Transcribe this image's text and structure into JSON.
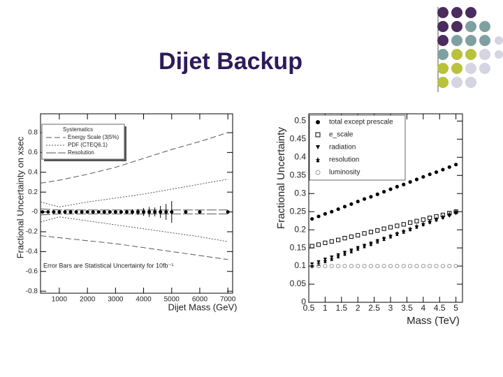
{
  "title": "Dijet Backup",
  "chart_data": [
    {
      "type": "line",
      "ylabel": "Fractional Uncertainty on xsec",
      "xlabel": "Dijet Mass (GeV)",
      "legend_title": "Systematics",
      "annotation": "Error Bars are Statistical Uncertainty for 10fb⁻¹",
      "xlim": [
        330,
        7170
      ],
      "ylim": [
        -0.82,
        0.99
      ],
      "xticks": [
        1000,
        2000,
        3000,
        4000,
        5000,
        6000,
        7000
      ],
      "yticks": [
        -0.8,
        -0.6,
        -0.4,
        -0.2,
        {
          "value": 0,
          "label": "-0"
        },
        0.2,
        0.4,
        0.6,
        0.8
      ],
      "series": [
        {
          "name": "Energy Scale (3|5%)",
          "color": "#555555",
          "dash": "8,4",
          "x": [
            330,
            1000,
            2000,
            3000,
            4000,
            5000,
            6000,
            7000
          ],
          "values": [
            0.29,
            0.32,
            0.38,
            0.45,
            0.54,
            0.63,
            0.71,
            0.8
          ],
          "lower": [
            -0.24,
            -0.26,
            -0.29,
            -0.32,
            -0.36,
            -0.4,
            -0.44,
            -0.48
          ]
        },
        {
          "name": "PDF (CTEQ6.1)",
          "color": "#555555",
          "dash": "2,2",
          "x": [
            330,
            1000,
            2000,
            3000,
            4000,
            5000,
            6000,
            7000
          ],
          "values": [
            0.1,
            0.05,
            0.1,
            0.14,
            0.18,
            0.23,
            0.28,
            0.33
          ],
          "lower": [
            -0.1,
            -0.05,
            -0.09,
            -0.13,
            -0.17,
            -0.21,
            -0.25,
            -0.3
          ]
        },
        {
          "name": "Resolution",
          "color": "#555555",
          "dash": "14,3",
          "x": [
            330,
            1000,
            2000,
            3000,
            4000,
            5000,
            6000,
            7000
          ],
          "values": [
            0.03,
            0.02,
            0.02,
            0.02,
            0.02,
            0.02,
            0.02,
            0.02
          ],
          "lower": [
            -0.03,
            -0.02,
            -0.02,
            -0.02,
            -0.02,
            -0.02,
            -0.02,
            -0.02
          ]
        },
        {
          "color": "#000000",
          "marker": "circle",
          "x": [
            400,
            600,
            800,
            1000,
            1200,
            1400,
            1600,
            1800,
            2000,
            2200,
            2400,
            2600,
            2800,
            3000,
            3200,
            3400,
            3600,
            3800,
            4000,
            4200,
            4400,
            4600,
            4800,
            5000,
            5500,
            6000,
            7000
          ],
          "values": [
            0,
            0,
            0,
            0,
            0,
            0,
            0,
            0,
            0,
            0,
            0,
            0,
            0,
            0,
            0,
            0,
            0,
            0,
            0,
            0,
            0,
            0,
            0,
            0,
            0,
            0,
            0
          ],
          "errors": [
            0.005,
            0.005,
            0.005,
            0.005,
            0.005,
            0.005,
            0.005,
            0.005,
            0.008,
            0.008,
            0.008,
            0.008,
            0.008,
            0.012,
            0.012,
            0.02,
            0.025,
            0.03,
            0.04,
            0.05,
            0.045,
            0.06,
            0.08,
            0.11,
            0,
            0,
            0
          ]
        }
      ]
    },
    {
      "type": "scatter",
      "ylabel": "Fractional Uncertainty",
      "xlabel": "Mass (TeV)",
      "xlim": [
        0.5,
        5.2
      ],
      "ylim": [
        0,
        0.52
      ],
      "xticks": [
        0.5,
        1,
        1.5,
        2,
        2.5,
        3,
        3.5,
        4,
        4.5,
        5
      ],
      "yticks": [
        0,
        0.05,
        0.1,
        0.15,
        0.2,
        0.25,
        0.3,
        0.35,
        0.4,
        0.45,
        0.5
      ],
      "series": [
        {
          "name": "total except prescale",
          "color": "#000000",
          "marker": "circle",
          "x": [
            0.6,
            0.8,
            1.0,
            1.2,
            1.4,
            1.6,
            1.8,
            2.0,
            2.2,
            2.4,
            2.6,
            2.8,
            3.0,
            3.2,
            3.4,
            3.6,
            3.8,
            4.0,
            4.2,
            4.4,
            4.6,
            4.8,
            5.0
          ],
          "values": [
            0.23,
            0.237,
            0.244,
            0.25,
            0.257,
            0.264,
            0.271,
            0.278,
            0.285,
            0.291,
            0.298,
            0.305,
            0.312,
            0.319,
            0.325,
            0.332,
            0.339,
            0.346,
            0.353,
            0.359,
            0.366,
            0.373,
            0.38
          ]
        },
        {
          "name": "e_scale",
          "color": "#000000",
          "marker": "square",
          "x": [
            0.6,
            0.8,
            1.0,
            1.2,
            1.4,
            1.6,
            1.8,
            2.0,
            2.2,
            2.4,
            2.6,
            2.8,
            3.0,
            3.2,
            3.4,
            3.6,
            3.8,
            4.0,
            4.2,
            4.4,
            4.6,
            4.8,
            5.0
          ],
          "values": [
            0.155,
            0.159,
            0.164,
            0.168,
            0.172,
            0.177,
            0.181,
            0.185,
            0.19,
            0.194,
            0.198,
            0.203,
            0.207,
            0.211,
            0.215,
            0.22,
            0.224,
            0.228,
            0.233,
            0.237,
            0.241,
            0.246,
            0.25
          ]
        },
        {
          "name": "radiation",
          "color": "#000000",
          "marker": "triangle",
          "x": [
            0.6,
            0.8,
            1.0,
            1.2,
            1.4,
            1.6,
            1.8,
            2.0,
            2.2,
            2.4,
            2.6,
            2.8,
            3.0,
            3.2,
            3.4,
            3.6,
            3.8,
            4.0,
            4.2,
            4.4,
            4.6,
            4.8,
            5.0
          ],
          "values": [
            0.105,
            0.111,
            0.118,
            0.124,
            0.13,
            0.137,
            0.143,
            0.15,
            0.156,
            0.162,
            0.169,
            0.175,
            0.181,
            0.188,
            0.194,
            0.2,
            0.207,
            0.213,
            0.219,
            0.226,
            0.232,
            0.238,
            0.245
          ]
        },
        {
          "name": "resolution",
          "color": "#000000",
          "marker": "star",
          "x": [
            0.6,
            0.8,
            1.0,
            1.2,
            1.4,
            1.6,
            1.8,
            2.0,
            2.2,
            2.4,
            2.6,
            2.8,
            3.0,
            3.2,
            3.4,
            3.6,
            3.8,
            4.0,
            4.2,
            4.4,
            4.6,
            4.8,
            5.0
          ],
          "values": [
            0.1,
            0.107,
            0.114,
            0.12,
            0.127,
            0.134,
            0.141,
            0.148,
            0.155,
            0.161,
            0.168,
            0.175,
            0.182,
            0.189,
            0.195,
            0.202,
            0.209,
            0.216,
            0.223,
            0.229,
            0.236,
            0.243,
            0.25
          ]
        },
        {
          "name": "luminosity",
          "color": "#999999",
          "marker": "circle-open",
          "x": [
            0.6,
            0.8,
            1.0,
            1.2,
            1.4,
            1.6,
            1.8,
            2.0,
            2.2,
            2.4,
            2.6,
            2.8,
            3.0,
            3.2,
            3.4,
            3.6,
            3.8,
            4.0,
            4.2,
            4.4,
            4.6,
            4.8,
            5.0
          ],
          "values": [
            0.1,
            0.1,
            0.1,
            0.1,
            0.1,
            0.1,
            0.1,
            0.1,
            0.1,
            0.1,
            0.1,
            0.1,
            0.1,
            0.1,
            0.1,
            0.1,
            0.1,
            0.1,
            0.1,
            0.1,
            0.1,
            0.1,
            0.1
          ]
        }
      ]
    }
  ]
}
